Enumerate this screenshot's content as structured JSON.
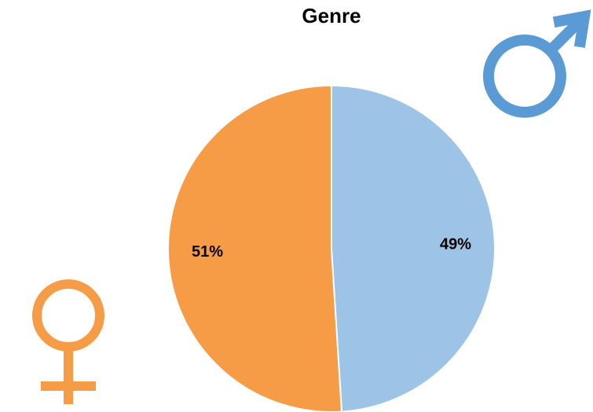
{
  "chart_data": {
    "type": "pie",
    "title": "Genre",
    "values": [
      49,
      51
    ],
    "value_labels": [
      "49%",
      "51%"
    ],
    "colors": [
      "#9dc3e6",
      "#f79c46"
    ]
  }
}
